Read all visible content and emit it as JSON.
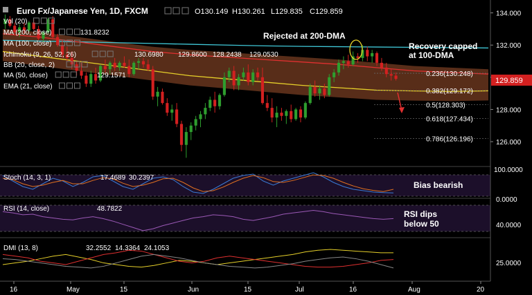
{
  "header": {
    "symbol": "Euro Fx/Japanese Yen, 1D, FXCM",
    "open": "O130.149",
    "high": "H130.261",
    "low": "L129.835",
    "close": "C129.859"
  },
  "indicators": [
    {
      "label": "Vol (20)",
      "values": []
    },
    {
      "label": "MA (200, close)",
      "values": [
        "131.8232"
      ]
    },
    {
      "label": "MA (100, close)",
      "values": []
    },
    {
      "label": "Ichimoku (9, 26, 52, 26)",
      "values": [
        "130.6980",
        "129.8600",
        "128.2438",
        "129.0530"
      ]
    },
    {
      "label": "BB (20, close, 2)",
      "values": []
    },
    {
      "label": "MA (50, close)",
      "values": [
        "129.1571"
      ]
    },
    {
      "label": "EMA (21, close)",
      "values": []
    }
  ],
  "annotations": {
    "rejected": "Rejected at 200-DMA",
    "recovery_1": "Recovery capped",
    "recovery_2": "at 100-DMA",
    "bias": "Bias bearish",
    "rsi_1": "RSI dips",
    "rsi_2": "below 50"
  },
  "price_badge": "129.859",
  "colors": {
    "background": "#000000",
    "bull": "#2e9e2e",
    "bear": "#d32020",
    "ma200": "#40c8d8",
    "ma100": "#e03030",
    "ma50": "#e6d02a",
    "cloud": "#a0522d",
    "stoch_k": "#3a7bd5",
    "stoch_d": "#e07020",
    "rsi": "#9b59b6",
    "dmi_plus": "#e6d02a",
    "dmi_minus": "#e03030",
    "adx": "#888888",
    "badge": "#d32020",
    "panel": "#1c0f2a"
  },
  "chart_data": {
    "type": "candlestick",
    "x_axis_labels": [
      "16",
      "May",
      "15",
      "Jun",
      "15",
      "Jul",
      "16",
      "Aug",
      "20"
    ],
    "y_axis_ticks": [
      "134.000",
      "132.000",
      "130.000",
      "128.000",
      "126.000"
    ],
    "ylim": [
      124.5,
      134.8
    ],
    "candles": [
      {
        "o": 133.3,
        "h": 133.9,
        "l": 133.0,
        "c": 133.6
      },
      {
        "o": 133.6,
        "h": 133.8,
        "l": 133.1,
        "c": 133.2
      },
      {
        "o": 133.2,
        "h": 133.4,
        "l": 132.6,
        "c": 132.8
      },
      {
        "o": 132.8,
        "h": 133.3,
        "l": 132.5,
        "c": 133.1
      },
      {
        "o": 133.1,
        "h": 133.4,
        "l": 132.7,
        "c": 132.9
      },
      {
        "o": 132.9,
        "h": 133.5,
        "l": 132.8,
        "c": 133.4
      },
      {
        "o": 133.4,
        "h": 133.6,
        "l": 132.9,
        "c": 133.0
      },
      {
        "o": 133.0,
        "h": 133.2,
        "l": 132.3,
        "c": 132.4
      },
      {
        "o": 132.4,
        "h": 132.9,
        "l": 132.2,
        "c": 132.8
      },
      {
        "o": 132.8,
        "h": 133.7,
        "l": 132.7,
        "c": 133.6
      },
      {
        "o": 133.6,
        "h": 133.8,
        "l": 132.4,
        "c": 132.5
      },
      {
        "o": 132.5,
        "h": 132.7,
        "l": 131.9,
        "c": 132.0
      },
      {
        "o": 132.0,
        "h": 132.3,
        "l": 131.2,
        "c": 131.4
      },
      {
        "o": 131.4,
        "h": 131.9,
        "l": 131.0,
        "c": 131.2
      },
      {
        "o": 131.2,
        "h": 131.6,
        "l": 130.5,
        "c": 130.8
      },
      {
        "o": 130.8,
        "h": 131.0,
        "l": 130.1,
        "c": 130.4
      },
      {
        "o": 130.4,
        "h": 130.9,
        "l": 129.9,
        "c": 130.1
      },
      {
        "o": 130.1,
        "h": 130.3,
        "l": 129.4,
        "c": 129.6
      },
      {
        "o": 129.6,
        "h": 130.4,
        "l": 129.4,
        "c": 130.2
      },
      {
        "o": 130.2,
        "h": 130.6,
        "l": 129.6,
        "c": 129.8
      },
      {
        "o": 129.8,
        "h": 130.8,
        "l": 129.7,
        "c": 130.7
      },
      {
        "o": 130.7,
        "h": 131.1,
        "l": 130.3,
        "c": 130.5
      },
      {
        "o": 130.5,
        "h": 131.0,
        "l": 130.2,
        "c": 130.9
      },
      {
        "o": 130.9,
        "h": 131.2,
        "l": 130.4,
        "c": 130.6
      },
      {
        "o": 130.6,
        "h": 131.0,
        "l": 130.4,
        "c": 130.9
      },
      {
        "o": 130.9,
        "h": 131.3,
        "l": 130.6,
        "c": 130.7
      },
      {
        "o": 130.7,
        "h": 131.1,
        "l": 130.0,
        "c": 130.2
      },
      {
        "o": 130.2,
        "h": 131.0,
        "l": 130.1,
        "c": 130.9
      },
      {
        "o": 130.9,
        "h": 131.2,
        "l": 130.5,
        "c": 131.0
      },
      {
        "o": 131.0,
        "h": 131.2,
        "l": 130.6,
        "c": 130.8
      },
      {
        "o": 130.8,
        "h": 131.1,
        "l": 130.4,
        "c": 130.5
      },
      {
        "o": 130.5,
        "h": 130.7,
        "l": 128.6,
        "c": 128.8
      },
      {
        "o": 128.8,
        "h": 129.4,
        "l": 128.2,
        "c": 129.1
      },
      {
        "o": 129.1,
        "h": 129.3,
        "l": 128.3,
        "c": 128.4
      },
      {
        "o": 128.4,
        "h": 128.7,
        "l": 127.6,
        "c": 127.8
      },
      {
        "o": 127.8,
        "h": 128.3,
        "l": 127.3,
        "c": 128.0
      },
      {
        "o": 128.0,
        "h": 128.4,
        "l": 126.9,
        "c": 127.1
      },
      {
        "o": 127.1,
        "h": 127.3,
        "l": 125.4,
        "c": 125.8
      },
      {
        "o": 125.8,
        "h": 126.9,
        "l": 125.0,
        "c": 126.6
      },
      {
        "o": 126.6,
        "h": 127.2,
        "l": 126.1,
        "c": 127.0
      },
      {
        "o": 127.0,
        "h": 127.6,
        "l": 126.7,
        "c": 127.4
      },
      {
        "o": 127.4,
        "h": 127.9,
        "l": 126.9,
        "c": 127.7
      },
      {
        "o": 127.7,
        "h": 128.4,
        "l": 127.4,
        "c": 128.1
      },
      {
        "o": 128.1,
        "h": 128.8,
        "l": 127.9,
        "c": 128.6
      },
      {
        "o": 128.6,
        "h": 129.1,
        "l": 127.8,
        "c": 128.2
      },
      {
        "o": 128.2,
        "h": 129.0,
        "l": 128.0,
        "c": 128.9
      },
      {
        "o": 128.9,
        "h": 130.3,
        "l": 128.8,
        "c": 130.0
      },
      {
        "o": 130.0,
        "h": 130.6,
        "l": 129.7,
        "c": 130.4
      },
      {
        "o": 130.4,
        "h": 130.7,
        "l": 129.2,
        "c": 129.5
      },
      {
        "o": 129.5,
        "h": 130.2,
        "l": 129.2,
        "c": 130.0
      },
      {
        "o": 130.0,
        "h": 130.6,
        "l": 129.8,
        "c": 130.3
      },
      {
        "o": 130.3,
        "h": 130.8,
        "l": 129.5,
        "c": 129.7
      },
      {
        "o": 129.7,
        "h": 130.5,
        "l": 129.5,
        "c": 130.3
      },
      {
        "o": 130.3,
        "h": 130.6,
        "l": 129.8,
        "c": 130.0
      },
      {
        "o": 130.0,
        "h": 130.6,
        "l": 128.3,
        "c": 128.4
      },
      {
        "o": 128.4,
        "h": 128.9,
        "l": 127.9,
        "c": 128.1
      },
      {
        "o": 128.1,
        "h": 128.7,
        "l": 127.2,
        "c": 127.5
      },
      {
        "o": 127.5,
        "h": 128.2,
        "l": 126.9,
        "c": 127.8
      },
      {
        "o": 127.8,
        "h": 128.1,
        "l": 127.3,
        "c": 127.6
      },
      {
        "o": 127.6,
        "h": 128.0,
        "l": 127.1,
        "c": 127.9
      },
      {
        "o": 127.9,
        "h": 128.3,
        "l": 127.2,
        "c": 127.4
      },
      {
        "o": 127.4,
        "h": 128.1,
        "l": 127.3,
        "c": 128.0
      },
      {
        "o": 128.0,
        "h": 128.2,
        "l": 127.2,
        "c": 127.5
      },
      {
        "o": 127.5,
        "h": 128.5,
        "l": 127.4,
        "c": 128.4
      },
      {
        "o": 128.4,
        "h": 129.6,
        "l": 128.3,
        "c": 129.4
      },
      {
        "o": 129.4,
        "h": 129.8,
        "l": 128.8,
        "c": 129.0
      },
      {
        "o": 129.0,
        "h": 129.5,
        "l": 128.6,
        "c": 129.3
      },
      {
        "o": 129.3,
        "h": 129.6,
        "l": 128.7,
        "c": 128.9
      },
      {
        "o": 128.9,
        "h": 130.2,
        "l": 128.8,
        "c": 130.0
      },
      {
        "o": 130.0,
        "h": 130.5,
        "l": 129.7,
        "c": 130.3
      },
      {
        "o": 130.3,
        "h": 131.1,
        "l": 130.1,
        "c": 130.9
      },
      {
        "o": 130.9,
        "h": 131.3,
        "l": 130.5,
        "c": 131.0
      },
      {
        "o": 131.0,
        "h": 131.4,
        "l": 130.6,
        "c": 130.8
      },
      {
        "o": 130.8,
        "h": 131.6,
        "l": 130.7,
        "c": 131.3
      },
      {
        "o": 131.3,
        "h": 131.5,
        "l": 130.9,
        "c": 131.2
      },
      {
        "o": 131.2,
        "h": 132.0,
        "l": 131.0,
        "c": 131.7
      },
      {
        "o": 131.7,
        "h": 131.9,
        "l": 131.0,
        "c": 131.3
      },
      {
        "o": 131.3,
        "h": 131.7,
        "l": 130.9,
        "c": 131.5
      },
      {
        "o": 131.5,
        "h": 131.6,
        "l": 130.7,
        "c": 130.9
      },
      {
        "o": 130.9,
        "h": 131.2,
        "l": 130.4,
        "c": 130.6
      },
      {
        "o": 130.6,
        "h": 130.9,
        "l": 130.0,
        "c": 130.2
      },
      {
        "o": 130.2,
        "h": 130.5,
        "l": 129.8,
        "c": 130.1
      },
      {
        "o": 130.1,
        "h": 130.3,
        "l": 129.8,
        "c": 129.9
      }
    ],
    "moving_averages": [
      {
        "name": "MA (200, close)",
        "values": [
          132.3,
          132.25,
          132.2,
          132.15,
          132.1,
          132.05,
          132.0,
          131.95,
          131.92,
          131.9,
          131.88,
          131.86,
          131.84,
          131.82
        ]
      },
      {
        "name": "MA (100, close)",
        "values": [
          132.7,
          132.5,
          132.2,
          131.9,
          131.6,
          131.4,
          131.25,
          131.1,
          130.95,
          130.8,
          130.6,
          130.4,
          130.3,
          130.2
        ]
      },
      {
        "name": "MA (50, close)",
        "values": [
          131.6,
          131.3,
          131.0,
          130.7,
          130.4,
          130.1,
          129.9,
          129.7,
          129.5,
          129.35,
          129.2,
          129.15,
          129.12,
          129.16
        ]
      }
    ],
    "fibonacci": [
      {
        "label": "0.236(130.248)",
        "level": 130.248
      },
      {
        "label": "0.382(129.172)",
        "level": 129.172
      },
      {
        "label": "0.5(128.303)",
        "level": 128.303
      },
      {
        "label": "0.618(127.434)",
        "level": 127.434
      },
      {
        "label": "0.786(126.196)",
        "level": 126.196
      }
    ],
    "stochastic": {
      "label": "Stoch (14, 3, 1)",
      "values": [
        "17.4689",
        "30.2397"
      ],
      "ticks": [
        "100.0000",
        "0.0000"
      ],
      "ylim": [
        0,
        100
      ],
      "k": [
        80,
        60,
        40,
        30,
        50,
        70,
        60,
        40,
        55,
        75,
        80,
        60,
        40,
        30,
        50,
        70,
        75,
        65,
        40,
        20,
        15,
        30,
        50,
        70,
        80,
        85,
        60,
        45,
        60,
        70,
        80,
        90,
        75,
        55,
        40,
        30,
        25,
        20,
        18,
        17
      ],
      "d": [
        70,
        65,
        50,
        40,
        45,
        55,
        62,
        50,
        50,
        62,
        72,
        68,
        52,
        40,
        45,
        55,
        68,
        70,
        55,
        35,
        22,
        25,
        38,
        55,
        70,
        80,
        72,
        58,
        55,
        62,
        72,
        82,
        80,
        70,
        55,
        42,
        32,
        26,
        22,
        30
      ]
    },
    "rsi": {
      "label": "RSI (14, close)",
      "values": [
        "48.7822"
      ],
      "ticks": [
        "40.0000"
      ],
      "ylim": [
        20,
        80
      ],
      "line": [
        60,
        58,
        55,
        56,
        52,
        50,
        48,
        47,
        50,
        52,
        49,
        45,
        40,
        35,
        30,
        33,
        38,
        42,
        46,
        50,
        52,
        55,
        54,
        52,
        48,
        46,
        49,
        52,
        56,
        58,
        60,
        62,
        60,
        57,
        55,
        53,
        51,
        49,
        48,
        49
      ]
    },
    "dmi": {
      "label": "DMI (13, 8)",
      "values": [
        "32.2552",
        "14.3364",
        "24.1053"
      ],
      "ticks": [
        "25.0000"
      ],
      "ylim": [
        0,
        45
      ],
      "plus": [
        18,
        20,
        22,
        25,
        28,
        30,
        27,
        24,
        20,
        18,
        16,
        15,
        17,
        20,
        23,
        22,
        20,
        18,
        20,
        22,
        24,
        26,
        28,
        30,
        33,
        35,
        36,
        35,
        34,
        33,
        32,
        32
      ],
      "minus": [
        30,
        28,
        26,
        22,
        20,
        18,
        22,
        26,
        30,
        32,
        35,
        34,
        30,
        26,
        22,
        20,
        22,
        26,
        28,
        26,
        24,
        22,
        20,
        18,
        16,
        15,
        15,
        16,
        18,
        20,
        23,
        24
      ],
      "adx": [
        25,
        24,
        22,
        20,
        18,
        16,
        15,
        14,
        16,
        20,
        24,
        28,
        30,
        28,
        26,
        23,
        20,
        18,
        16,
        15,
        14,
        15,
        17,
        19,
        22,
        24,
        26,
        27,
        25,
        22,
        18,
        14
      ]
    }
  }
}
